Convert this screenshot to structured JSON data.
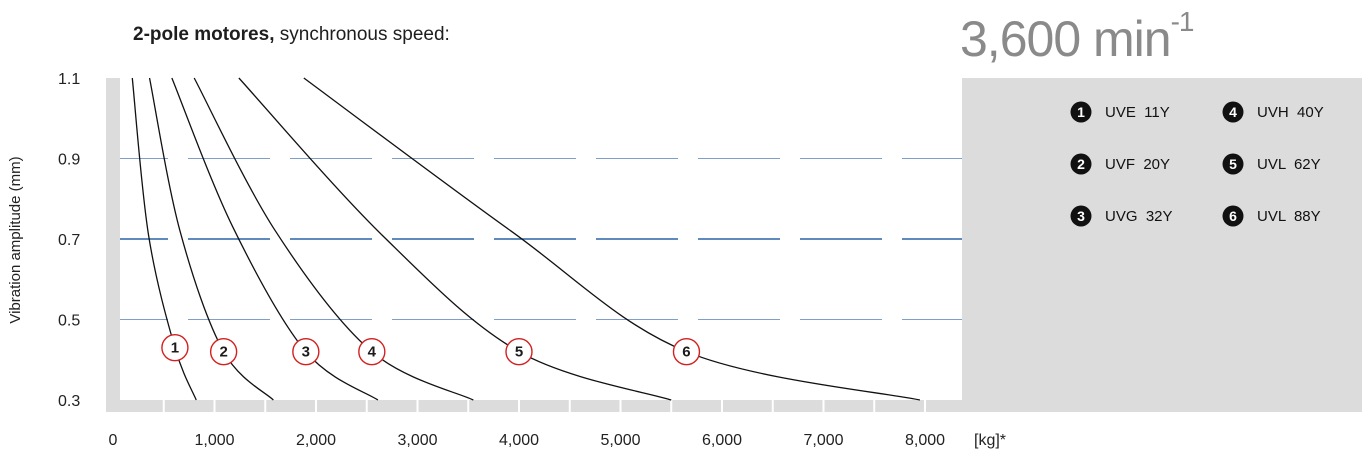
{
  "header": {
    "title_bold": "2-pole motores,",
    "title_rest": " synchronous speed:",
    "speed_value": "3,600 min",
    "speed_exponent": "-1"
  },
  "colors": {
    "panel": "#dcdcdc",
    "plot_bg": "#ffffff",
    "curve": "#111111",
    "grid_light": "#7f9fc8",
    "grid_dark": "#2a63a8",
    "marker_ring": "#d32020",
    "legend_dot": "#111111"
  },
  "chart_data": {
    "type": "line",
    "title": "",
    "xlabel": "[kg]*",
    "ylabel": "Vibration amplitude (mm)",
    "xlim": [
      0,
      8500
    ],
    "ylim": [
      0.3,
      1.1
    ],
    "x_ticks": [
      "0",
      "1,000",
      "2,000",
      "3,000",
      "4,000",
      "5,000",
      "6,000",
      "7,000",
      "8,000"
    ],
    "y_ticks": [
      "1.1",
      "0.9",
      "0.7",
      "0.5",
      "0.3"
    ],
    "grid": {
      "horizontal_dashed_at": [
        0.9,
        0.7,
        0.5
      ],
      "emphasized": 0.7
    },
    "series": [
      {
        "id": "1",
        "name": "UVE  11Y",
        "points": [
          [
            190,
            1.1
          ],
          [
            350,
            0.71
          ],
          [
            610,
            0.43
          ],
          [
            820,
            0.3
          ]
        ]
      },
      {
        "id": "2",
        "name": "UVF  20Y",
        "points": [
          [
            360,
            1.1
          ],
          [
            660,
            0.72
          ],
          [
            1090,
            0.42
          ],
          [
            1580,
            0.3
          ]
        ]
      },
      {
        "id": "3",
        "name": "UVG  32Y",
        "points": [
          [
            580,
            1.1
          ],
          [
            1180,
            0.73
          ],
          [
            1900,
            0.42
          ],
          [
            2610,
            0.3
          ]
        ]
      },
      {
        "id": "4",
        "name": "UVH  40Y",
        "points": [
          [
            800,
            1.1
          ],
          [
            1600,
            0.72
          ],
          [
            2550,
            0.42
          ],
          [
            3550,
            0.3
          ]
        ]
      },
      {
        "id": "5",
        "name": "UVL  62Y",
        "points": [
          [
            1240,
            1.1
          ],
          [
            2650,
            0.71
          ],
          [
            4000,
            0.42
          ],
          [
            5500,
            0.3
          ]
        ]
      },
      {
        "id": "6",
        "name": "UVL  88Y",
        "points": [
          [
            1880,
            1.1
          ],
          [
            3920,
            0.72
          ],
          [
            5650,
            0.42
          ],
          [
            7950,
            0.3
          ]
        ]
      }
    ],
    "legend_placement": "right panel, two columns"
  }
}
